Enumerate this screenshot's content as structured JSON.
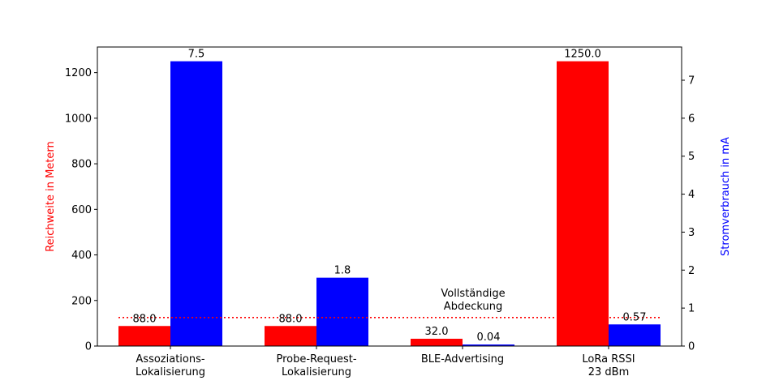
{
  "chart_data": {
    "type": "bar",
    "categories": [
      [
        "Assoziations-",
        "Lokalisierung"
      ],
      [
        "Probe-Request-",
        "Lokalisierung"
      ],
      [
        "BLE-Advertising"
      ],
      [
        "LoRa RSSI",
        "23 dBm"
      ]
    ],
    "series": [
      {
        "axis": "left",
        "color": "#ff0000",
        "values": [
          88.0,
          88.0,
          32.0,
          1250.0
        ],
        "value_labels": [
          "88.0",
          "88.0",
          "32.0",
          "1250.0"
        ]
      },
      {
        "axis": "right",
        "color": "#0000ff",
        "values": [
          7.5,
          1.8,
          0.04,
          0.57
        ],
        "value_labels": [
          "7.5",
          "1.8",
          "0.04",
          "0.57"
        ]
      }
    ],
    "ylabel_left": "Reichweite in Metern",
    "ylabel_right": "Stromverbrauch in mA",
    "ylim_left": [
      0,
      1312.5
    ],
    "ylim_right": [
      0,
      7.875
    ],
    "yticks_left": [
      0,
      200,
      400,
      600,
      800,
      1000,
      1200
    ],
    "yticks_right": [
      0,
      1,
      2,
      3,
      4,
      5,
      6,
      7
    ],
    "reference_line": {
      "axis": "left",
      "value": 125,
      "color": "#ff0000",
      "style": "dotted",
      "label": [
        "Vollständige",
        "Abdeckung"
      ]
    },
    "grid": false
  }
}
